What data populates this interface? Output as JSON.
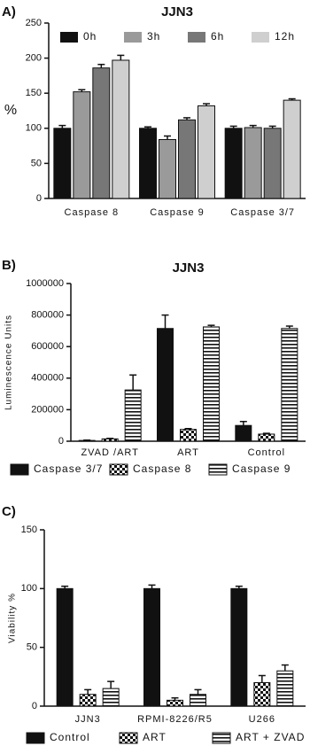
{
  "chart_data": [
    {
      "type": "bar",
      "panel_label": "A)",
      "title": "JJN3",
      "y_label": "%",
      "categories": [
        "Caspase 8",
        "Caspase 9",
        "Caspase 3/7"
      ],
      "series": [
        {
          "name": "0h",
          "color": "#111111",
          "values": [
            100,
            100,
            100
          ],
          "errors": [
            4,
            2,
            3
          ]
        },
        {
          "name": "3h",
          "color": "#9a9a9a",
          "values": [
            152,
            84,
            101
          ],
          "errors": [
            3,
            5,
            3
          ]
        },
        {
          "name": "6h",
          "color": "#777777",
          "values": [
            186,
            112,
            100
          ],
          "errors": [
            5,
            3,
            3
          ]
        },
        {
          "name": "12h",
          "color": "#cfcfcf",
          "values": [
            197,
            132,
            140
          ],
          "errors": [
            7,
            3,
            2
          ]
        }
      ],
      "ylim": [
        0,
        250
      ],
      "yticks": [
        0,
        50,
        100,
        150,
        200,
        250
      ],
      "legend": "top"
    },
    {
      "type": "bar",
      "panel_label": "B)",
      "title": "JJN3",
      "y_label": "Luminescence Units",
      "categories": [
        "ZVAD /ART",
        "ART",
        "Control"
      ],
      "series": [
        {
          "name": "Caspase 3/7",
          "color": "#111111",
          "pattern": "solid",
          "values": [
            5000,
            715000,
            100000
          ],
          "errors": [
            2000,
            85000,
            25000
          ]
        },
        {
          "name": "Caspase 8",
          "color": "#111111",
          "pattern": "checker",
          "values": [
            15000,
            75000,
            45000
          ],
          "errors": [
            3000,
            5000,
            5000
          ]
        },
        {
          "name": "Caspase 9",
          "color": "#111111",
          "pattern": "stripes",
          "values": [
            325000,
            725000,
            715000
          ],
          "errors": [
            95000,
            10000,
            15000
          ]
        }
      ],
      "ylim": [
        0,
        1000000
      ],
      "yticks": [
        0,
        200000,
        400000,
        600000,
        800000,
        1000000
      ],
      "legend": "bottom"
    },
    {
      "type": "bar",
      "panel_label": "C)",
      "y_label": "Viability %",
      "categories": [
        "JJN3",
        "RPMI-8226/R5",
        "U266"
      ],
      "series": [
        {
          "name": "Control",
          "color": "#111111",
          "pattern": "solid",
          "values": [
            100,
            100,
            100
          ],
          "errors": [
            2,
            3,
            2
          ]
        },
        {
          "name": "ART",
          "color": "#111111",
          "pattern": "checker",
          "values": [
            10,
            5,
            20
          ],
          "errors": [
            4,
            2,
            6
          ]
        },
        {
          "name": "ART + ZVAD",
          "color": "#111111",
          "pattern": "stripes",
          "values": [
            15,
            10,
            30
          ],
          "errors": [
            6,
            4,
            5
          ]
        }
      ],
      "ylim": [
        0,
        150
      ],
      "yticks": [
        0,
        50,
        100,
        150
      ],
      "legend": "bottom"
    }
  ]
}
